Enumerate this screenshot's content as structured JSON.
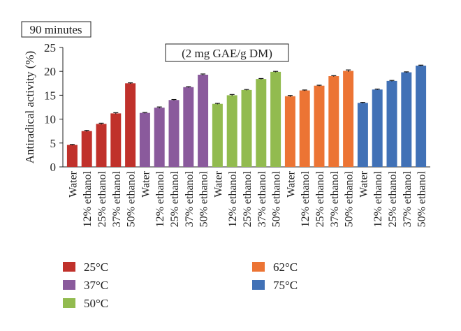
{
  "chart_data": {
    "type": "bar",
    "tag": "90 minutes",
    "annotation": "(2 mg GAE/g DM)",
    "ylabel": "Antiradical activity (%)",
    "xlabel": "",
    "ylim": [
      0,
      25
    ],
    "yticks": [
      0,
      5,
      10,
      15,
      20,
      25
    ],
    "grid": false,
    "error_bars": true,
    "legend_position": "bottom",
    "categories": [
      "Water",
      "12% ethanol",
      "25% ethanol",
      "37% ethanol",
      "50% ethanol"
    ],
    "series": [
      {
        "name": "25°C",
        "color": "#c0312b",
        "values": [
          4.6,
          7.5,
          9.0,
          11.2,
          17.5
        ],
        "errors": [
          0.1,
          0.15,
          0.15,
          0.15,
          0.1
        ]
      },
      {
        "name": "37°C",
        "color": "#8a5a9c",
        "values": [
          11.3,
          12.4,
          14.0,
          16.7,
          19.3
        ],
        "errors": [
          0.1,
          0.15,
          0.1,
          0.1,
          0.15
        ]
      },
      {
        "name": "50°C",
        "color": "#92bb4f",
        "values": [
          13.2,
          15.0,
          16.1,
          18.4,
          19.9
        ],
        "errors": [
          0.1,
          0.15,
          0.1,
          0.1,
          0.1
        ]
      },
      {
        "name": "62°C",
        "color": "#ec7434",
        "values": [
          14.8,
          16.0,
          17.0,
          19.0,
          20.1
        ],
        "errors": [
          0.15,
          0.1,
          0.1,
          0.1,
          0.2
        ]
      },
      {
        "name": "75°C",
        "color": "#4171b6",
        "values": [
          13.4,
          16.2,
          18.0,
          19.8,
          21.2
        ],
        "errors": [
          0.1,
          0.1,
          0.1,
          0.1,
          0.1
        ]
      }
    ]
  }
}
